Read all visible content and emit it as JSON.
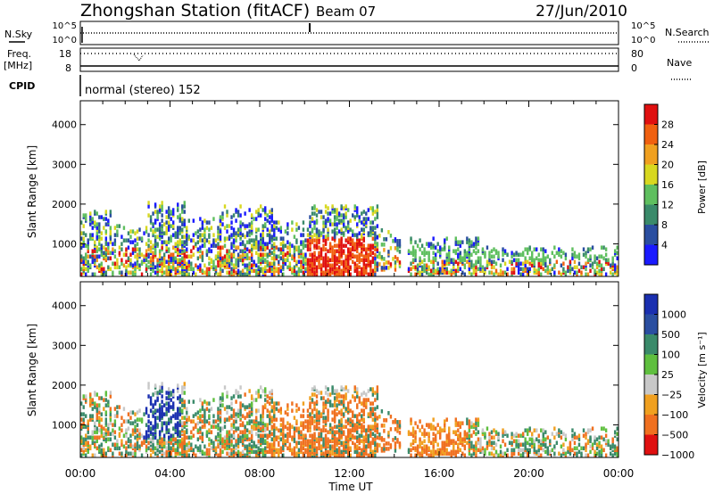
{
  "header": {
    "station": "Zhongshan Station (fitACF)",
    "beam": "Beam 07",
    "date": "27/Jun/2010"
  },
  "noise_panel": {
    "left_label": "N.Sky",
    "right_label": "N.Search",
    "left_ticks": [
      "10^5",
      "10^0"
    ],
    "right_ticks": [
      "10^5",
      "10^0"
    ]
  },
  "freq_panel": {
    "left_label_1": "Freq.",
    "left_label_2": "[MHz]",
    "right_label": "Nave",
    "left_ticks": [
      "18",
      "8"
    ],
    "right_ticks": [
      "80",
      "0"
    ]
  },
  "cpid": {
    "label": "CPID",
    "mode": "normal (stereo) 152"
  },
  "power_panel": {
    "ylabel": "Slant Range [km]",
    "yticks": [
      "1000",
      "2000",
      "3000",
      "4000"
    ],
    "colorbar_label": "Power [dB]",
    "colorbar_ticks": [
      "4",
      "8",
      "12",
      "16",
      "20",
      "24",
      "28"
    ],
    "colors": [
      "#1a1aff",
      "#2a4ea0",
      "#3a8a6a",
      "#5fbf5f",
      "#d8d820",
      "#f0a020",
      "#f06010",
      "#e01010"
    ]
  },
  "velocity_panel": {
    "ylabel": "Slant Range [km]",
    "yticks": [
      "1000",
      "2000",
      "3000",
      "4000"
    ],
    "colorbar_label": "Velocity [m s⁻¹]",
    "colorbar_ticks": [
      "1000",
      "500",
      "100",
      "25",
      "−25",
      "−100",
      "−500",
      "−1000"
    ],
    "colors": [
      "#1a2fb0",
      "#2a4ea0",
      "#3a8a6a",
      "#5fbf3f",
      "#c8c8c8",
      "#f0a020",
      "#f07020",
      "#e01010"
    ]
  },
  "xaxis": {
    "label": "Time UT",
    "ticks": [
      "00:00",
      "04:00",
      "08:00",
      "12:00",
      "16:00",
      "20:00",
      "00:00"
    ]
  },
  "chart_data": {
    "type": "heatmap",
    "title": "Zhongshan Station (fitACF)  Beam 07  27/Jun/2010",
    "xlabel": "Time UT",
    "ylabel": "Slant Range [km]",
    "xlim": [
      "00:00",
      "24:00"
    ],
    "ylim": [
      180,
      4600
    ],
    "power_colorbar": {
      "label": "Power [dB]",
      "ticks": [
        4,
        8,
        12,
        16,
        20,
        24,
        28
      ],
      "range": [
        0,
        32
      ]
    },
    "velocity_colorbar": {
      "label": "Velocity [m s-1]",
      "ticks": [
        1000,
        500,
        100,
        25,
        -25,
        -100,
        -500,
        -1000
      ]
    },
    "noise_sky_range": [
      "10^0",
      "10^5"
    ],
    "freq_range_mhz": [
      8,
      18
    ],
    "nave_range": [
      0,
      80
    ],
    "cpid": "normal (stereo) 152"
  }
}
